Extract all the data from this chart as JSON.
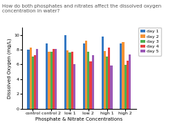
{
  "title": "How do both phosphates and nitrates affect the dissolved oxygen concentration in water?",
  "xlabel": "Phosphate & Nitrate Concentrations",
  "ylabel": "Dissolved Oxygen (mg/L)",
  "categories": [
    "control",
    "control 2",
    "low 1",
    "low 2",
    "high 1",
    "high 2"
  ],
  "days": [
    "day 1",
    "day 2",
    "day 3",
    "day 4",
    "day 5"
  ],
  "colors": [
    "#3579C4",
    "#F79336",
    "#4CAF50",
    "#E84040",
    "#9B59B6"
  ],
  "values": [
    [
      8.0,
      8.25,
      7.1,
      7.3,
      8.05
    ],
    [
      8.85,
      7.75,
      7.75,
      8.05,
      8.1
    ],
    [
      10.0,
      7.95,
      7.65,
      7.75,
      6.05
    ],
    [
      8.85,
      9.2,
      7.75,
      6.45,
      7.25
    ],
    [
      9.8,
      7.85,
      7.1,
      8.25,
      5.9
    ],
    [
      8.85,
      9.0,
      5.95,
      6.55,
      7.35
    ]
  ],
  "ylim": [
    0,
    11
  ],
  "yticks": [
    0,
    2,
    4,
    6,
    8,
    10
  ],
  "title_fontsize": 5.0,
  "axis_fontsize": 5.0,
  "tick_fontsize": 4.5,
  "legend_fontsize": 4.5,
  "bar_width": 0.12,
  "background_color": "#ffffff"
}
